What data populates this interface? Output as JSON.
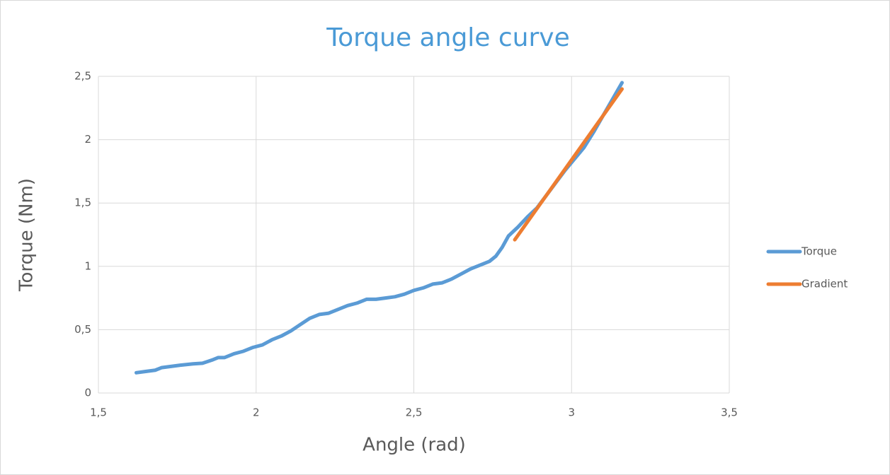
{
  "chart_data": {
    "type": "line",
    "title": "Torque angle curve",
    "x_label": "Angle (rad)",
    "y_label": "Torque (Nm)",
    "xlim": [
      1.5,
      3.5
    ],
    "ylim": [
      0,
      2.5
    ],
    "xticks": [
      {
        "value": 1.5,
        "label": "1,5"
      },
      2,
      {
        "value": 2.5,
        "label": "2,5"
      },
      3,
      {
        "value": 3.5,
        "label": "3,5"
      }
    ],
    "yticks": [
      0,
      {
        "value": 0.5,
        "label": "0,5"
      },
      1,
      {
        "value": 1.5,
        "label": "1,5"
      },
      2,
      {
        "value": 2.5,
        "label": "2,5"
      }
    ],
    "grid": true,
    "legend": "right",
    "series": [
      {
        "name": "Torque",
        "color": "#5b9bd5",
        "x": [
          1.62,
          1.65,
          1.68,
          1.7,
          1.73,
          1.76,
          1.8,
          1.83,
          1.86,
          1.88,
          1.9,
          1.93,
          1.96,
          1.99,
          2.02,
          2.05,
          2.08,
          2.11,
          2.14,
          2.17,
          2.2,
          2.23,
          2.26,
          2.29,
          2.32,
          2.35,
          2.38,
          2.41,
          2.44,
          2.47,
          2.5,
          2.53,
          2.56,
          2.59,
          2.62,
          2.65,
          2.68,
          2.71,
          2.74,
          2.76,
          2.78,
          2.8,
          2.83,
          2.86,
          2.89,
          2.92,
          2.95,
          2.98,
          3.01,
          3.04,
          3.07,
          3.1,
          3.13,
          3.16
        ],
        "values": [
          0.16,
          0.17,
          0.18,
          0.2,
          0.21,
          0.22,
          0.23,
          0.235,
          0.26,
          0.28,
          0.28,
          0.31,
          0.33,
          0.36,
          0.38,
          0.42,
          0.45,
          0.49,
          0.54,
          0.59,
          0.62,
          0.63,
          0.66,
          0.69,
          0.71,
          0.74,
          0.74,
          0.75,
          0.76,
          0.78,
          0.81,
          0.83,
          0.86,
          0.87,
          0.9,
          0.94,
          0.98,
          1.01,
          1.04,
          1.08,
          1.15,
          1.24,
          1.31,
          1.39,
          1.46,
          1.56,
          1.66,
          1.76,
          1.85,
          1.94,
          2.06,
          2.19,
          2.32,
          2.45
        ]
      },
      {
        "name": "Gradient",
        "color": "#ed7d31",
        "x": [
          2.82,
          3.16
        ],
        "values": [
          1.21,
          2.4
        ]
      }
    ]
  }
}
